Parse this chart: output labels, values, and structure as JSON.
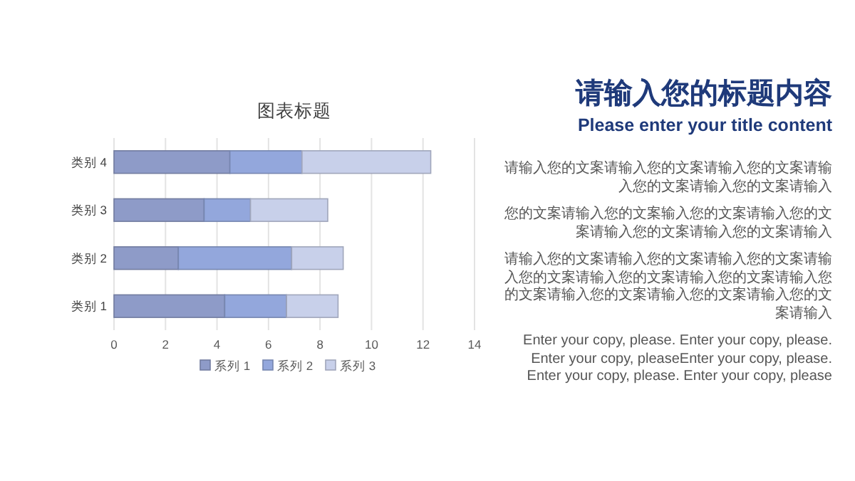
{
  "chart_data": [
    {
      "type": "bar",
      "orientation": "horizontal",
      "stacked": true,
      "title": "图表标题",
      "categories": [
        "类别 4",
        "类别 3",
        "类别 2",
        "类别 1"
      ],
      "series": [
        {
          "name": "系列 1",
          "color": "#8e9bc8",
          "values": [
            4.5,
            3.5,
            2.5,
            4.3
          ]
        },
        {
          "name": "系列 2",
          "color": "#93a7dc",
          "values": [
            2.8,
            1.8,
            4.4,
            2.4
          ]
        },
        {
          "name": "系列 3",
          "color": "#c8d0ea",
          "values": [
            5,
            3,
            2,
            2
          ]
        }
      ],
      "xlim": [
        0,
        14
      ],
      "xticks": [
        0,
        2,
        4,
        6,
        8,
        10,
        12,
        14
      ],
      "grid": "x",
      "legend": "bottom"
    },
    {
      "type": "other",
      "title": "请输入您的标题内容",
      "subtitle": "Please enter your title content",
      "annotations": [
        "请输入您的文案请输入您的文案请输入您的文案请输入您的文案请输入您的文案请输入",
        "您的文案请输入您的文案输入您的文案请输入您的文案请输入您的文案请输入您的文案请输入",
        "请输入您的文案请输入您的文案请输入您的文案请输入您的文案请输入您的文案请输入您的文案请输入您的文案请输入您的文案请输入您的文案请输入您的文案请输入",
        "Enter your copy, please. Enter your copy, please. Enter your copy, pleaseEnter your copy, please. Enter your copy, please. Enter your copy, please"
      ]
    }
  ]
}
